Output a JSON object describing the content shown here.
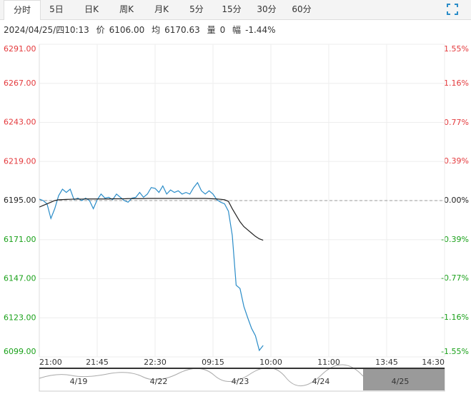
{
  "tabs": [
    "分时",
    "5日",
    "日K",
    "周K",
    "月K",
    "5分",
    "15分",
    "30分",
    "60分"
  ],
  "selected_tab": 0,
  "info": {
    "datetime": "2024/04/25/四10:13",
    "price_label": "价",
    "price": "6106.00",
    "avg_label": "均",
    "avg": "6170.63",
    "vol_label": "量",
    "vol": "0",
    "range_label": "幅",
    "range": "-1.44%"
  },
  "chart_data": {
    "type": "line",
    "x": [
      0,
      3,
      6,
      9,
      12,
      15,
      18,
      21,
      24,
      27,
      30,
      33,
      36,
      39,
      42,
      45,
      48,
      51,
      54,
      57,
      60,
      63,
      66,
      69,
      72,
      75,
      78,
      81,
      84,
      87,
      90,
      93,
      96,
      99,
      102,
      105,
      108,
      111,
      114,
      117,
      120,
      123,
      126,
      129,
      132,
      135,
      138,
      141,
      144,
      147,
      150,
      153,
      156,
      159,
      162,
      165,
      168,
      171,
      174
    ],
    "series": [
      {
        "name": "价",
        "color": "#2a8cc8",
        "values": [
          6195.9,
          6195,
          6193,
          6184,
          6190,
          6198,
          6202,
          6200,
          6202,
          6195.5,
          6196.5,
          6195,
          6196.5,
          6195,
          6190,
          6195.5,
          6199,
          6196.5,
          6197,
          6195.5,
          6199,
          6197,
          6195,
          6194,
          6196.5,
          6197,
          6200,
          6197,
          6199,
          6203,
          6202.5,
          6200,
          6204,
          6199,
          6201.5,
          6200,
          6201,
          6199,
          6200,
          6199,
          6203,
          6206,
          6201,
          6199,
          6201,
          6199,
          6195.5,
          6194,
          6193,
          6188.5,
          6173.6,
          6143,
          6141,
          6130,
          6123,
          6116.5,
          6112,
          6103,
          6106
        ]
      },
      {
        "name": "均",
        "color": "#222222",
        "values": [
          6191,
          6192,
          6193,
          6194,
          6195,
          6195.5,
          6195.6,
          6195.7,
          6195.8,
          6195.9,
          6195.9,
          6195.9,
          6196,
          6196,
          6196,
          6196,
          6196,
          6196,
          6196,
          6196.1,
          6196.1,
          6196.1,
          6196.1,
          6196.2,
          6196.2,
          6196.2,
          6196.2,
          6196.2,
          6196.3,
          6196.3,
          6196.3,
          6196.3,
          6196.3,
          6196.3,
          6196.3,
          6196.3,
          6196.3,
          6196.3,
          6196.3,
          6196.3,
          6196.3,
          6196.3,
          6196.3,
          6196.3,
          6196.2,
          6196.1,
          6196,
          6195.8,
          6195.5,
          6194.5,
          6190,
          6186,
          6182,
          6179,
          6177,
          6175,
          6173,
          6171.5,
          6170.63
        ]
      }
    ],
    "reference_line": 6195,
    "ylim": [
      6099,
      6291
    ],
    "yticks": [
      {
        "value": 6291,
        "label": "6291.00"
      },
      {
        "value": 6267,
        "label": "6267.00"
      },
      {
        "value": 6243,
        "label": "6243.00"
      },
      {
        "value": 6219,
        "label": "6219.00"
      },
      {
        "value": 6195,
        "label": "6195.00"
      },
      {
        "value": 6171,
        "label": "6171.00"
      },
      {
        "value": 6147,
        "label": "6147.00"
      },
      {
        "value": 6123,
        "label": "6123.00"
      },
      {
        "value": 6099,
        "label": "6099.00"
      }
    ],
    "y2lim": [
      -1.55,
      1.55
    ],
    "y2ticks": [
      {
        "value": 1.55,
        "label": "1.55%"
      },
      {
        "value": 1.16,
        "label": "1.16%"
      },
      {
        "value": 0.77,
        "label": "0.77%"
      },
      {
        "value": 0.39,
        "label": "0.39%"
      },
      {
        "value": 0,
        "label": "0.00%"
      },
      {
        "value": -0.39,
        "label": "-0.39%"
      },
      {
        "value": -0.77,
        "label": "-0.77%"
      },
      {
        "value": -1.16,
        "label": "-1.16%"
      },
      {
        "value": -1.55,
        "label": "-1.55%"
      }
    ],
    "xlim": [
      0,
      315
    ],
    "xticks": [
      {
        "value": 0,
        "label": "21:00"
      },
      {
        "value": 45,
        "label": "21:45"
      },
      {
        "value": 90,
        "label": "22:30"
      },
      {
        "value": 135,
        "label": "09:15"
      },
      {
        "value": 180,
        "label": "10:00"
      },
      {
        "value": 225,
        "label": "11:00"
      },
      {
        "value": 270,
        "label": "13:45"
      },
      {
        "value": 315,
        "label": "14:30"
      }
    ],
    "grid": true,
    "up_color": "#e4393c",
    "down_color": "#1aa11a"
  },
  "navigator": {
    "dates": [
      "4/19",
      "4/22",
      "4/23",
      "4/24",
      "4/25"
    ]
  }
}
